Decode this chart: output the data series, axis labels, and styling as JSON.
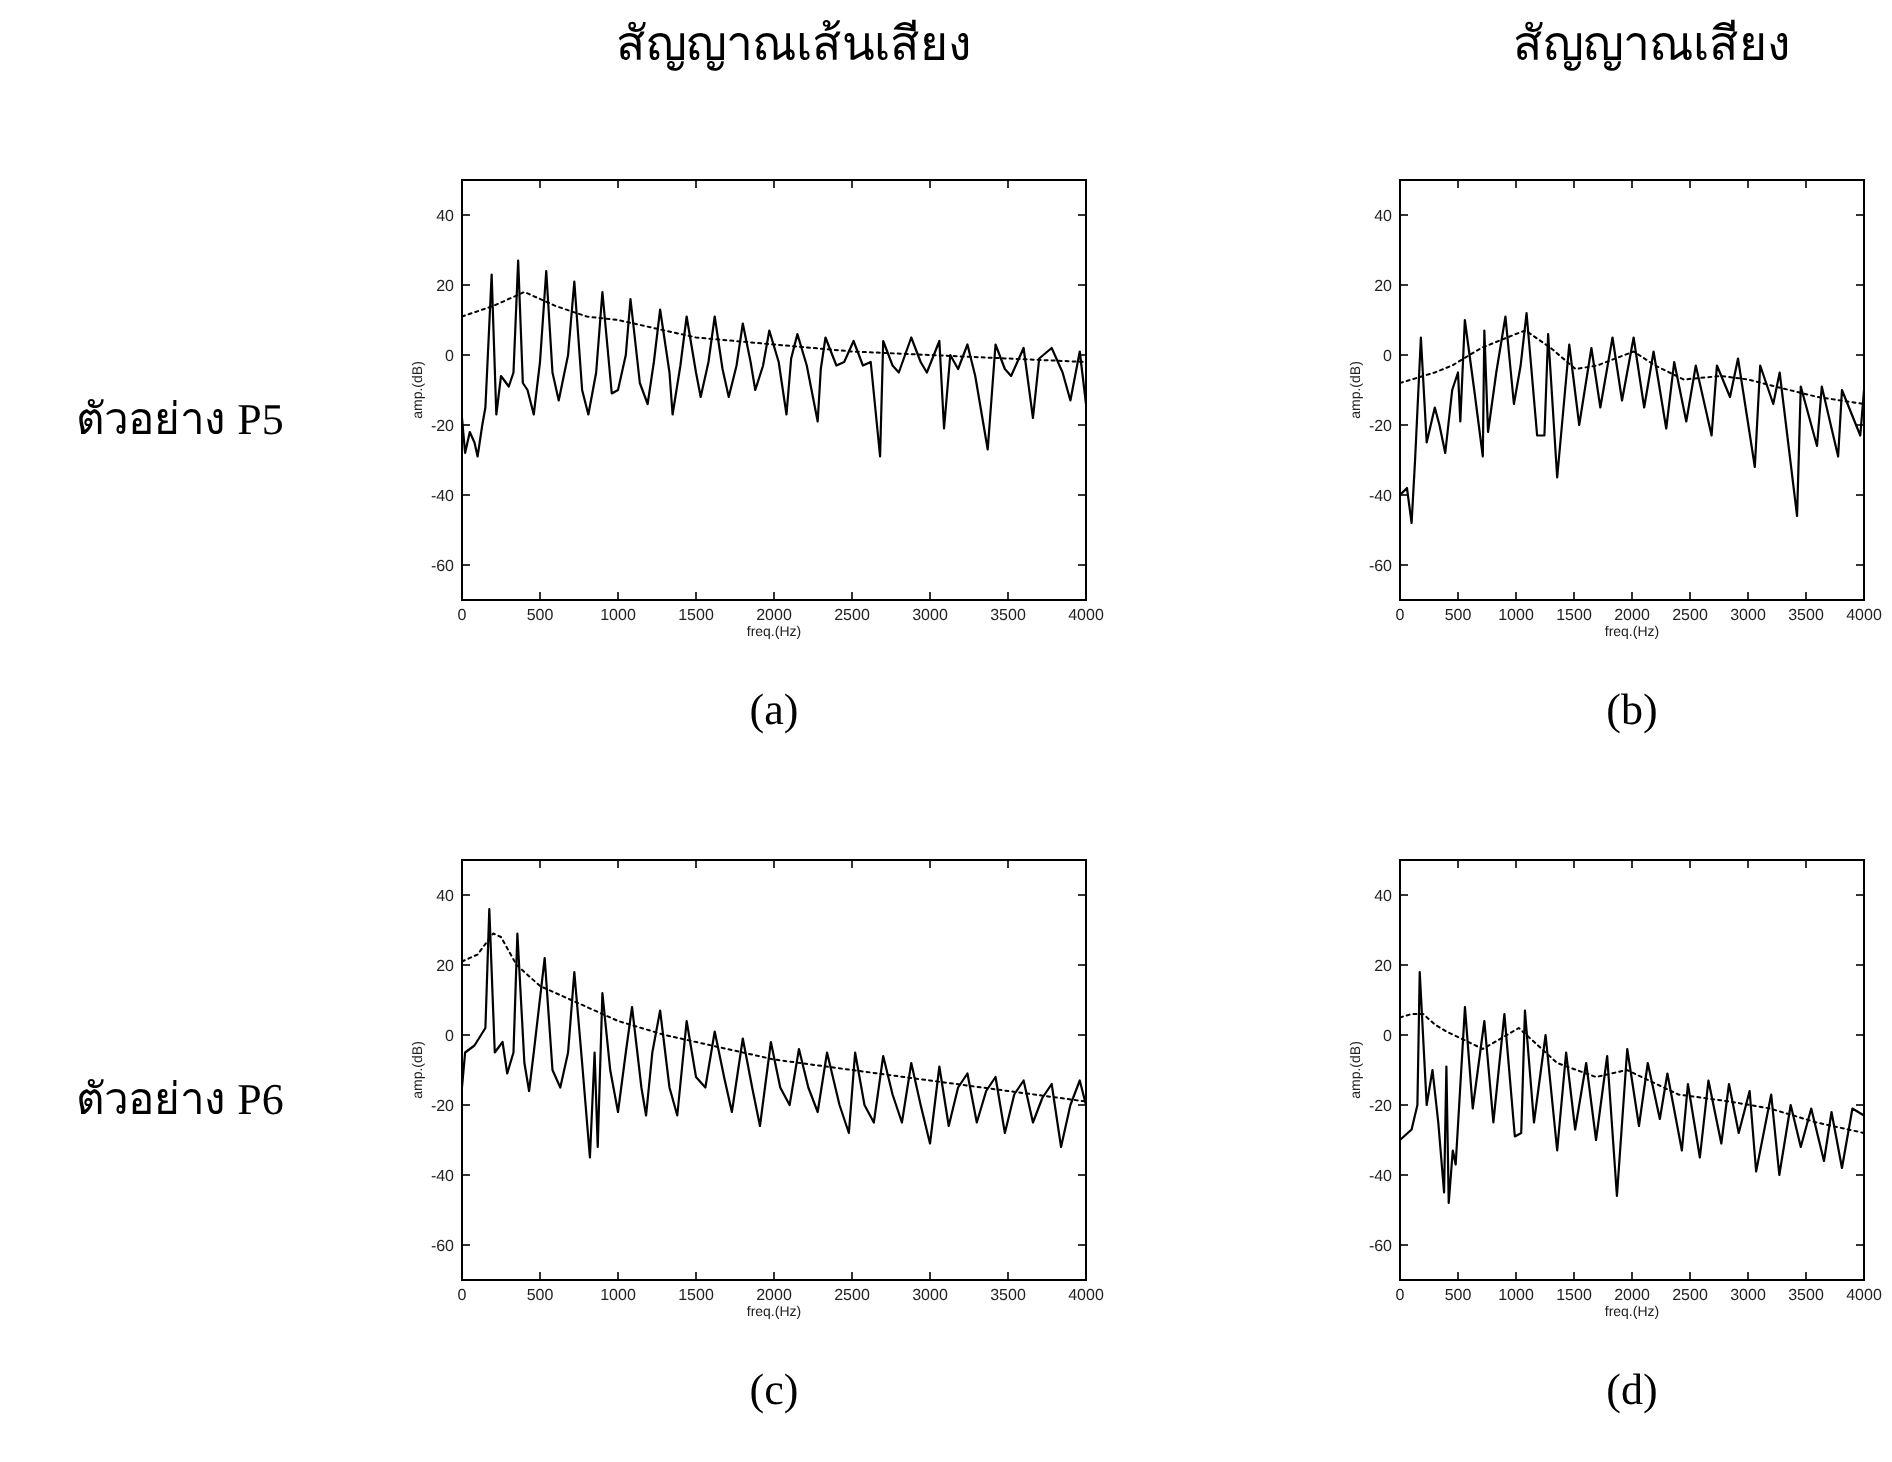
{
  "chart_data": [
    {
      "type": "line",
      "title": "สัญญาณเส้นเสียง",
      "xlabel": "freq.(Hz)",
      "ylabel": "amp.(dB)",
      "annotations": [
        "ตัวอย่าง P5",
        "(a)"
      ],
      "xlim": [
        0,
        4000
      ],
      "xticks": [
        0,
        500,
        1000,
        1500,
        2000,
        2500,
        3000,
        3500,
        4000
      ],
      "ylim": [
        -70,
        50
      ],
      "yticks": [
        -60,
        -40,
        -20,
        0,
        20,
        40
      ],
      "series": [
        {
          "color": "#000000",
          "line_style": "solid",
          "x": [
            0,
            20,
            50,
            80,
            100,
            130,
            150,
            190,
            220,
            250,
            300,
            330,
            360,
            390,
            420,
            460,
            500,
            540,
            580,
            620,
            680,
            720,
            770,
            810,
            860,
            900,
            960,
            1000,
            1050,
            1080,
            1140,
            1190,
            1230,
            1270,
            1330,
            1350,
            1400,
            1440,
            1500,
            1530,
            1580,
            1620,
            1670,
            1710,
            1760,
            1800,
            1850,
            1880,
            1930,
            1970,
            2030,
            2080,
            2110,
            2150,
            2210,
            2280,
            2300,
            2330,
            2400,
            2450,
            2510,
            2570,
            2620,
            2680,
            2700,
            2760,
            2800,
            2880,
            2940,
            2980,
            3060,
            3090,
            3130,
            3180,
            3240,
            3290,
            3370,
            3420,
            3480,
            3520,
            3600,
            3660,
            3700,
            3780,
            3850,
            3900,
            3960,
            4000
          ],
          "values": [
            -18,
            -28,
            -22,
            -25,
            -29,
            -20,
            -15,
            23,
            -17,
            -6,
            -9,
            -5,
            27,
            -8,
            -10,
            -17,
            -2,
            24,
            -5,
            -13,
            0,
            21,
            -10,
            -17,
            -5,
            18,
            -11,
            -10,
            0,
            16,
            -8,
            -14,
            -2,
            13,
            -5,
            -17,
            -3,
            11,
            -5,
            -12,
            -2,
            11,
            -4,
            -12,
            -3,
            9,
            -2,
            -10,
            -3,
            7,
            -2,
            -17,
            -1,
            6,
            -3,
            -19,
            -4,
            5,
            -3,
            -2,
            4,
            -3,
            -2,
            -29,
            4,
            -3,
            -5,
            5,
            -2,
            -5,
            4,
            -21,
            0,
            -4,
            3,
            -6,
            -27,
            3,
            -4,
            -6,
            2,
            -18,
            -1,
            2,
            -5,
            -13,
            1,
            -14
          ]
        },
        {
          "color": "#000000",
          "line_style": "dotted",
          "x": [
            0,
            200,
            400,
            600,
            800,
            1000,
            1200,
            1500,
            2000,
            2500,
            3000,
            3500,
            4000
          ],
          "values": [
            11,
            14,
            18,
            14,
            11,
            10,
            8,
            5,
            3,
            1,
            0,
            -1,
            -2
          ]
        }
      ]
    },
    {
      "type": "line",
      "title": "สัญญาณเสียง",
      "xlabel": "freq.(Hz)",
      "ylabel": "amp.(dB)",
      "annotations": [
        "(b)"
      ],
      "xlim": [
        0,
        4000
      ],
      "xticks": [
        0,
        500,
        1000,
        1500,
        2000,
        2500,
        3000,
        3500,
        4000
      ],
      "ylim": [
        -70,
        50
      ],
      "yticks": [
        -60,
        -40,
        -20,
        0,
        20,
        40
      ],
      "series": [
        {
          "color": "#000000",
          "line_style": "solid",
          "x": [
            0,
            60,
            100,
            130,
            180,
            230,
            300,
            340,
            390,
            450,
            500,
            520,
            559,
            640,
            714,
            727,
            759,
            830,
            909,
            982,
            1040,
            1091,
            1182,
            1245,
            1277,
            1355,
            1459,
            1545,
            1650,
            1727,
            1832,
            1914,
            2014,
            2105,
            2186,
            2295,
            2364,
            2468,
            2550,
            2686,
            2732,
            2845,
            2914,
            3059,
            3105,
            3218,
            3273,
            3423,
            3455,
            3595,
            3636,
            3777,
            3810,
            3968,
            4000
          ],
          "values": [
            -40,
            -38,
            -48,
            -30,
            5,
            -25,
            -15,
            -20,
            -28,
            -10,
            -5,
            -19,
            10,
            -10,
            -29,
            7,
            -22,
            -5,
            11,
            -14,
            -3,
            12,
            -23,
            -23,
            6,
            -35,
            3,
            -20,
            2,
            -15,
            5,
            -13,
            5,
            -15,
            1,
            -21,
            -2,
            -19,
            -3,
            -23,
            -3,
            -12,
            -1,
            -32,
            -3,
            -14,
            -5,
            -46,
            -9,
            -26,
            -9,
            -29,
            -10,
            -23,
            -10
          ]
        },
        {
          "color": "#000000",
          "line_style": "dotted",
          "x": [
            0,
            300,
            450,
            700,
            1000,
            1082,
            1300,
            1514,
            1700,
            2014,
            2200,
            2445,
            2764,
            3000,
            3355,
            3600,
            4000
          ],
          "values": [
            -8,
            -5,
            -3,
            2,
            6,
            7,
            2,
            -4,
            -3,
            1,
            -3,
            -7,
            -6,
            -7,
            -10,
            -12,
            -14
          ]
        }
      ]
    },
    {
      "type": "line",
      "xlabel": "freq.(Hz)",
      "ylabel": "amp.(dB)",
      "annotations": [
        "ตัวอย่าง P6",
        "(c)"
      ],
      "xlim": [
        0,
        4000
      ],
      "xticks": [
        0,
        500,
        1000,
        1500,
        2000,
        2500,
        3000,
        3500,
        4000
      ],
      "ylim": [
        -70,
        50
      ],
      "yticks": [
        -60,
        -40,
        -20,
        0,
        20,
        40
      ],
      "series": [
        {
          "color": "#000000",
          "line_style": "solid",
          "x": [
            0,
            20,
            80,
            150,
            175,
            210,
            260,
            290,
            330,
            355,
            400,
            430,
            460,
            530,
            580,
            630,
            680,
            720,
            770,
            820,
            850,
            870,
            900,
            950,
            1000,
            1050,
            1090,
            1150,
            1180,
            1220,
            1270,
            1330,
            1380,
            1440,
            1500,
            1560,
            1620,
            1680,
            1730,
            1800,
            1860,
            1910,
            1980,
            2040,
            2100,
            2160,
            2220,
            2280,
            2340,
            2420,
            2480,
            2520,
            2580,
            2640,
            2700,
            2760,
            2820,
            2880,
            2940,
            3000,
            3060,
            3120,
            3180,
            3240,
            3300,
            3360,
            3420,
            3480,
            3540,
            3600,
            3660,
            3720,
            3780,
            3840,
            3900,
            3960,
            4000
          ],
          "values": [
            -15,
            -5,
            -3,
            2,
            36,
            -5,
            -2,
            -11,
            -5,
            29,
            -8,
            -16,
            -5,
            22,
            -10,
            -15,
            -5,
            18,
            -8,
            -35,
            -5,
            -32,
            12,
            -10,
            -22,
            -5,
            8,
            -15,
            -23,
            -5,
            7,
            -15,
            -23,
            4,
            -12,
            -15,
            1,
            -12,
            -22,
            -1,
            -15,
            -26,
            -2,
            -15,
            -20,
            -4,
            -15,
            -22,
            -5,
            -20,
            -28,
            -5,
            -20,
            -25,
            -6,
            -17,
            -25,
            -8,
            -20,
            -31,
            -9,
            -26,
            -15,
            -11,
            -25,
            -16,
            -12,
            -28,
            -17,
            -13,
            -25,
            -18,
            -14,
            -32,
            -20,
            -13,
            -20
          ]
        },
        {
          "color": "#000000",
          "line_style": "dotted",
          "x": [
            0,
            100,
            200,
            250,
            350,
            500,
            700,
            1000,
            1300,
            1600,
            2000,
            2500,
            3000,
            3500,
            4000
          ],
          "values": [
            21,
            23,
            29,
            28,
            20,
            14,
            10,
            4,
            0,
            -3,
            -7,
            -10,
            -13,
            -16,
            -19
          ]
        }
      ]
    },
    {
      "type": "line",
      "xlabel": "freq.(Hz)",
      "ylabel": "amp.(dB)",
      "annotations": [
        "(d)"
      ],
      "xlim": [
        0,
        4000
      ],
      "xticks": [
        0,
        500,
        1000,
        1500,
        2000,
        2500,
        3000,
        3500,
        4000
      ],
      "ylim": [
        -70,
        50
      ],
      "yticks": [
        -60,
        -40,
        -20,
        0,
        20,
        40
      ],
      "series": [
        {
          "color": "#000000",
          "line_style": "solid",
          "x": [
            0,
            100,
            150,
            170,
            230,
            280,
            330,
            380,
            400,
            420,
            455,
            480,
            560,
            627,
            727,
            805,
            900,
            990,
            1045,
            1077,
            1155,
            1255,
            1355,
            1432,
            1510,
            1605,
            1690,
            1786,
            1870,
            1959,
            2060,
            2136,
            2240,
            2305,
            2430,
            2482,
            2585,
            2659,
            2770,
            2836,
            2920,
            3014,
            3070,
            3200,
            3270,
            3368,
            3455,
            3545,
            3655,
            3720,
            3810,
            3900,
            4000
          ],
          "values": [
            -30,
            -27,
            -20,
            18,
            -20,
            -10,
            -25,
            -45,
            -9,
            -48,
            -33,
            -37,
            8,
            -21,
            4,
            -25,
            6,
            -29,
            -28,
            7,
            -25,
            0,
            -33,
            -5,
            -27,
            -8,
            -30,
            -6,
            -46,
            -4,
            -26,
            -8,
            -24,
            -11,
            -33,
            -14,
            -35,
            -13,
            -31,
            -14,
            -28,
            -16,
            -39,
            -17,
            -40,
            -20,
            -32,
            -21,
            -36,
            -22,
            -38,
            -21,
            -23
          ]
        },
        {
          "color": "#000000",
          "line_style": "dotted",
          "x": [
            0,
            100,
            200,
            300,
            400,
            714,
            1024,
            1355,
            1690,
            1955,
            2400,
            2840,
            3190,
            3590,
            4000
          ],
          "values": [
            5,
            6,
            6,
            3,
            1,
            -4,
            2,
            -8,
            -12,
            -10,
            -17,
            -19,
            -21,
            -25,
            -28
          ]
        }
      ]
    }
  ]
}
